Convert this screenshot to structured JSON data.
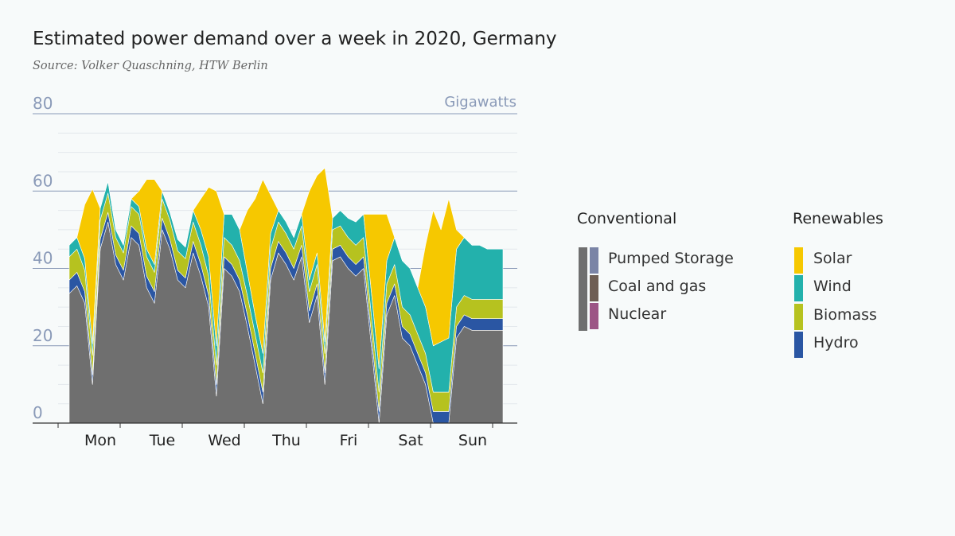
{
  "title": "Estimated power demand over a week in 2020, Germany",
  "source": "Source: Volker Quaschning, HTW Berlin",
  "colors": {
    "pumped_storage": "#7a84a6",
    "coal_and_gas": "#6e5e54",
    "nuclear": "#9c5585",
    "conventional_area": "#6f6f6f",
    "solar": "#f6c800",
    "wind": "#23b1ac",
    "biomass": "#b6c21f",
    "hydro": "#2a56a3",
    "axis": "#8a9ab8"
  },
  "legend": {
    "conventional_title": "Conventional",
    "renewables_title": "Renewables",
    "conventional": [
      {
        "label": "Pumped Storage",
        "color": "#7a84a6"
      },
      {
        "label": "Coal and gas",
        "color": "#6e5e54"
      },
      {
        "label": "Nuclear",
        "color": "#9c5585"
      }
    ],
    "renewables": [
      {
        "label": "Solar",
        "color": "#f6c800"
      },
      {
        "label": "Wind",
        "color": "#23b1ac"
      },
      {
        "label": "Biomass",
        "color": "#b6c21f"
      },
      {
        "label": "Hydro",
        "color": "#2a56a3"
      }
    ]
  },
  "chart_data": {
    "type": "area",
    "stacked": true,
    "title": "Estimated power demand over a week in 2020, Germany",
    "ylabel": "Gigawatts",
    "ylim": [
      0,
      80
    ],
    "yticks": [
      0,
      20,
      40,
      60,
      80
    ],
    "x_tick_labels": [
      "Mon",
      "Tue",
      "Wed",
      "Thu",
      "Fri",
      "Sat",
      "Sun"
    ],
    "x_range": [
      0,
      7
    ],
    "x": [
      0,
      0.125,
      0.25,
      0.375,
      0.5,
      0.625,
      0.75,
      0.875,
      1,
      1.125,
      1.25,
      1.375,
      1.5,
      1.625,
      1.75,
      1.875,
      2,
      2.125,
      2.25,
      2.375,
      2.5,
      2.625,
      2.75,
      2.875,
      3,
      3.125,
      3.25,
      3.375,
      3.5,
      3.625,
      3.75,
      3.875,
      4,
      4.125,
      4.25,
      4.375,
      4.5,
      4.625,
      4.75,
      4.875,
      5,
      5.125,
      5.25,
      5.375,
      5.5,
      5.625,
      5.75,
      5.875,
      6,
      6.125,
      6.25,
      6.375,
      6.5,
      6.625,
      6.75,
      6.875,
      7
    ],
    "series": [
      {
        "name": "Conventional",
        "values": [
          33.5,
          35.5,
          31,
          10,
          45,
          52,
          41,
          37,
          48,
          46,
          35,
          31,
          50,
          45,
          37,
          35,
          44,
          38,
          30,
          7,
          40,
          38,
          34,
          25,
          15,
          5,
          37,
          44,
          41,
          37,
          43,
          26,
          33,
          10,
          42,
          43,
          40,
          38,
          40,
          20,
          0,
          28,
          33,
          22,
          20,
          15,
          10,
          0,
          0,
          0,
          22,
          25,
          24,
          24,
          24,
          24,
          24
        ]
      },
      {
        "name": "Hydro",
        "values": [
          3.5,
          3.5,
          3,
          2.5,
          2.5,
          2.5,
          2.5,
          2.5,
          3,
          3,
          3,
          3,
          3,
          2.5,
          2.5,
          2.5,
          3,
          3,
          3,
          3,
          3,
          3,
          3,
          3,
          3,
          3,
          3,
          3,
          3,
          3,
          3,
          3,
          3,
          3,
          3,
          3,
          3,
          3,
          3,
          3,
          3,
          3,
          3,
          3,
          3,
          3,
          3,
          3,
          3,
          3,
          3,
          3,
          3,
          3,
          3,
          3,
          3
        ]
      },
      {
        "name": "Biomass",
        "values": [
          6,
          6,
          5.5,
          5,
          5,
          5,
          4.5,
          4.5,
          5,
          5,
          5,
          5,
          5,
          5,
          5,
          5,
          5,
          5,
          5,
          5,
          5,
          5,
          5,
          5,
          5,
          5,
          5,
          5,
          5,
          5,
          5,
          5,
          5,
          5,
          5,
          5,
          5,
          5,
          5,
          5,
          5,
          5,
          5,
          5,
          5,
          5,
          5,
          5,
          5,
          5,
          5,
          5,
          5,
          5,
          5,
          5,
          5
        ]
      },
      {
        "name": "Wind",
        "values": [
          3,
          3,
          3,
          3,
          3,
          3,
          2,
          2,
          2,
          2,
          2,
          2,
          2,
          2,
          3,
          3,
          3,
          4,
          5,
          5,
          6,
          8,
          8,
          6,
          5,
          5,
          4,
          3,
          3,
          3,
          3,
          3,
          3,
          3,
          3,
          4,
          5,
          6,
          6,
          6,
          6,
          6,
          7,
          12,
          12,
          12,
          12,
          12,
          13,
          14,
          15,
          15,
          14,
          14,
          13,
          13,
          13
        ]
      },
      {
        "name": "Solar",
        "values": [
          0,
          0,
          14,
          40,
          0,
          0,
          0,
          0,
          0,
          4,
          18,
          22,
          0,
          0,
          0,
          0,
          0,
          8,
          18,
          40,
          0,
          0,
          0,
          16,
          30,
          45,
          10,
          0,
          0,
          0,
          0,
          23,
          20,
          45,
          0,
          0,
          0,
          0,
          0,
          20,
          40,
          12,
          0,
          0,
          0,
          0,
          16,
          35,
          29,
          36,
          5,
          0,
          0,
          0,
          0,
          0,
          0
        ]
      }
    ]
  }
}
